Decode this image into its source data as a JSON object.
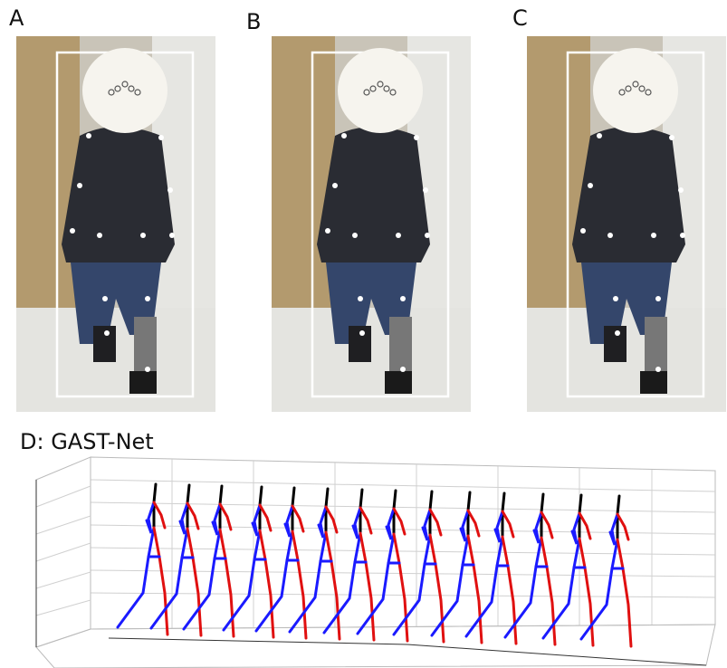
{
  "panels": [
    {
      "label": "A"
    },
    {
      "label": "B"
    },
    {
      "label": "C"
    }
  ],
  "plot": {
    "title": "D: GAST-Net"
  }
}
